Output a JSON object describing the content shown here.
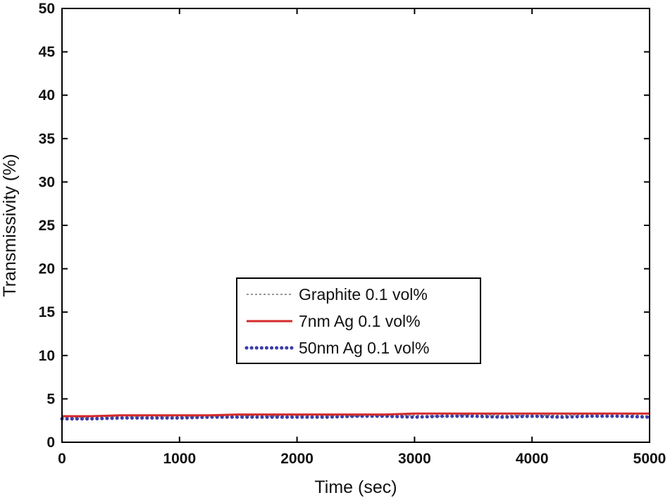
{
  "chart_data": {
    "type": "line",
    "title": "",
    "xlabel": "Time (sec)",
    "ylabel": "Transmissivity (%)",
    "xlim": [
      0,
      5000
    ],
    "ylim": [
      0,
      50
    ],
    "xticks": [
      "0",
      "1000",
      "2000",
      "3000",
      "4000",
      "5000"
    ],
    "yticks": [
      "0",
      "5",
      "10",
      "15",
      "20",
      "25",
      "30",
      "35",
      "40",
      "45",
      "50"
    ],
    "grid": false,
    "legend_position": "center",
    "series": [
      {
        "name": "Graphite 0.1 vol%",
        "color": "#777777",
        "style": "dotted-thin",
        "x": [
          0,
          250,
          500,
          750,
          1000,
          1250,
          1500,
          1750,
          2000,
          2250,
          2500,
          2750,
          3000,
          3250,
          3500,
          3750,
          4000,
          4250,
          4500,
          4750,
          5000
        ],
        "y": [
          2.9,
          2.9,
          3.0,
          3.0,
          3.0,
          3.0,
          3.1,
          3.0,
          3.1,
          3.1,
          3.0,
          3.1,
          3.1,
          3.0,
          3.2,
          3.1,
          3.1,
          3.1,
          3.2,
          3.3,
          3.0
        ]
      },
      {
        "name": "7nm Ag 0.1 vol%",
        "color": "#d42a2a",
        "style": "solid",
        "x": [
          0,
          250,
          500,
          750,
          1000,
          1250,
          1500,
          1750,
          2000,
          2250,
          2500,
          2750,
          3000,
          3250,
          3500,
          3750,
          4000,
          4250,
          4500,
          4750,
          5000
        ],
        "y": [
          3.0,
          3.0,
          3.1,
          3.1,
          3.1,
          3.1,
          3.2,
          3.2,
          3.2,
          3.2,
          3.2,
          3.2,
          3.3,
          3.3,
          3.3,
          3.3,
          3.3,
          3.3,
          3.3,
          3.3,
          3.3
        ]
      },
      {
        "name": "50nm Ag 0.1 vol%",
        "color": "#3a3ea8",
        "style": "dotted-thick",
        "x": [
          0,
          250,
          500,
          750,
          1000,
          1250,
          1500,
          1750,
          2000,
          2250,
          2500,
          2750,
          3000,
          3250,
          3500,
          3750,
          4000,
          4250,
          4500,
          4750,
          5000
        ],
        "y": [
          2.7,
          2.7,
          2.8,
          2.8,
          2.8,
          2.9,
          2.9,
          2.9,
          2.9,
          2.9,
          3.0,
          3.0,
          2.9,
          3.0,
          3.0,
          2.9,
          3.0,
          2.9,
          3.0,
          3.0,
          2.9
        ]
      }
    ]
  }
}
